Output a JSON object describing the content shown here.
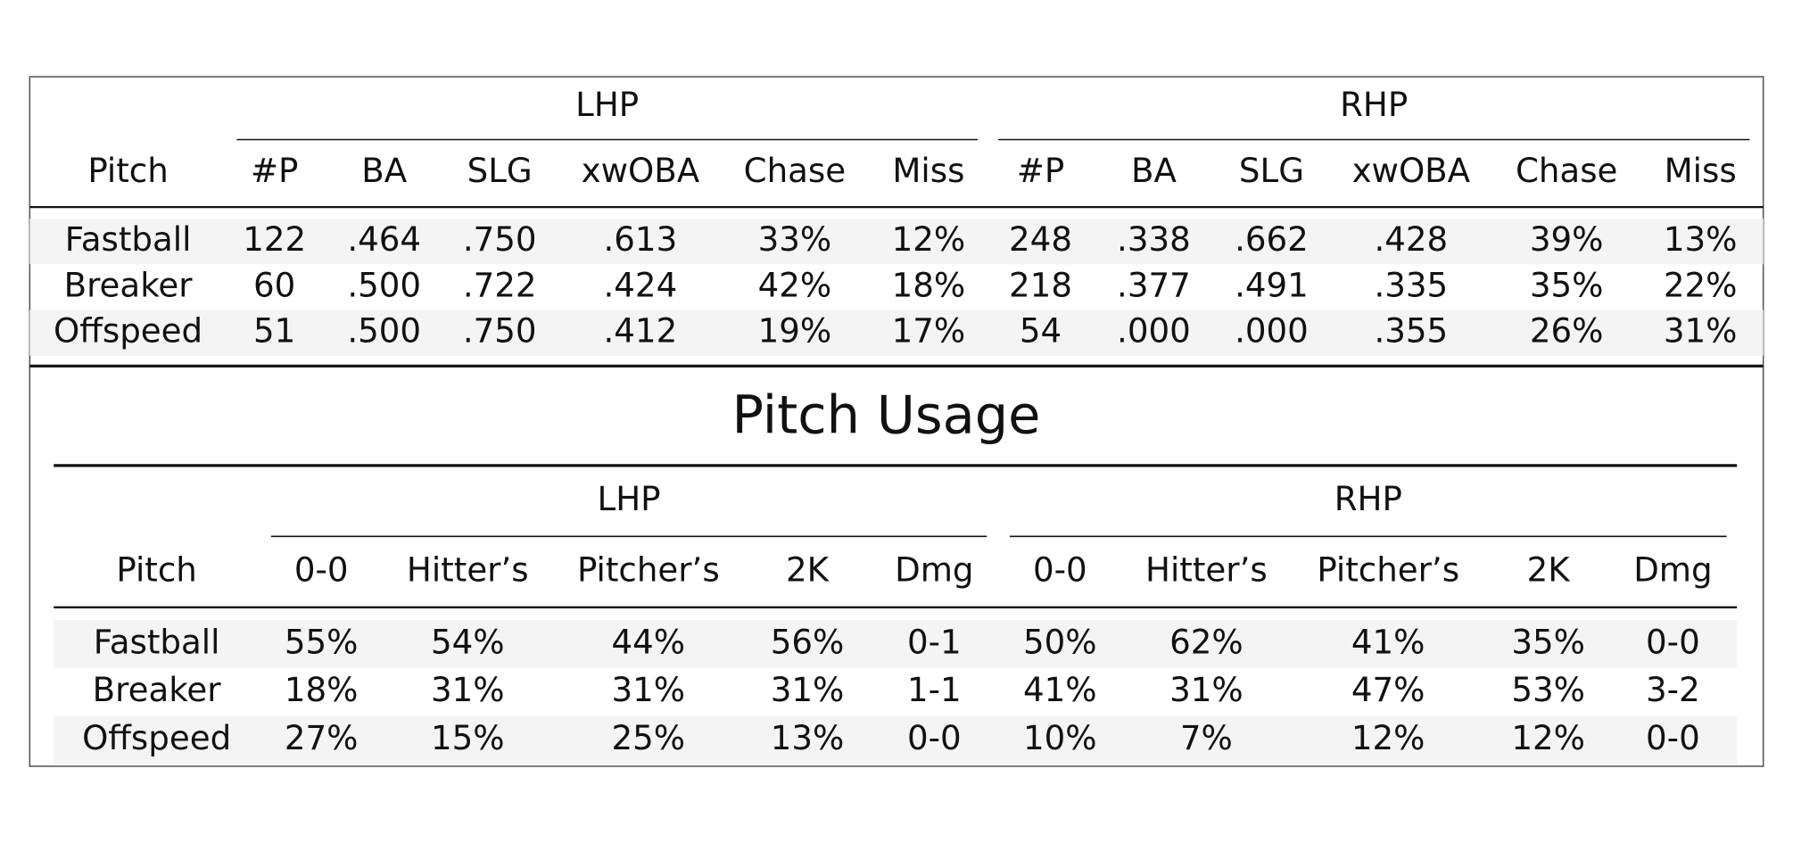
{
  "tables": [
    {
      "groups": [
        "LHP",
        "RHP"
      ],
      "columns": [
        "Pitch",
        "#P",
        "BA",
        "SLG",
        "xwOBA",
        "Chase",
        "Miss",
        "#P",
        "BA",
        "SLG",
        "xwOBA",
        "Chase",
        "Miss"
      ],
      "rows": [
        [
          "Fastball",
          "122",
          ".464",
          ".750",
          ".613",
          "33%",
          "12%",
          "248",
          ".338",
          ".662",
          ".428",
          "39%",
          "13%"
        ],
        [
          "Breaker",
          "60",
          ".500",
          ".722",
          ".424",
          "42%",
          "18%",
          "218",
          ".377",
          ".491",
          ".335",
          "35%",
          "22%"
        ],
        [
          "Offspeed",
          "51",
          ".500",
          ".750",
          ".412",
          "19%",
          "17%",
          "54",
          ".000",
          ".000",
          ".355",
          "26%",
          "31%"
        ]
      ]
    },
    {
      "title": "Pitch Usage",
      "groups": [
        "LHP",
        "RHP"
      ],
      "columns": [
        "Pitch",
        "0-0",
        "Hitter’s",
        "Pitcher’s",
        "2K",
        "Dmg",
        "0-0",
        "Hitter’s",
        "Pitcher’s",
        "2K",
        "Dmg"
      ],
      "rows": [
        [
          "Fastball",
          "55%",
          "54%",
          "44%",
          "56%",
          "0-1",
          "50%",
          "62%",
          "41%",
          "35%",
          "0-0"
        ],
        [
          "Breaker",
          "18%",
          "31%",
          "31%",
          "31%",
          "1-1",
          "41%",
          "31%",
          "47%",
          "53%",
          "3-2"
        ],
        [
          "Offspeed",
          "27%",
          "15%",
          "25%",
          "13%",
          "0-0",
          "10%",
          "7%",
          "12%",
          "12%",
          "0-0"
        ]
      ]
    }
  ]
}
